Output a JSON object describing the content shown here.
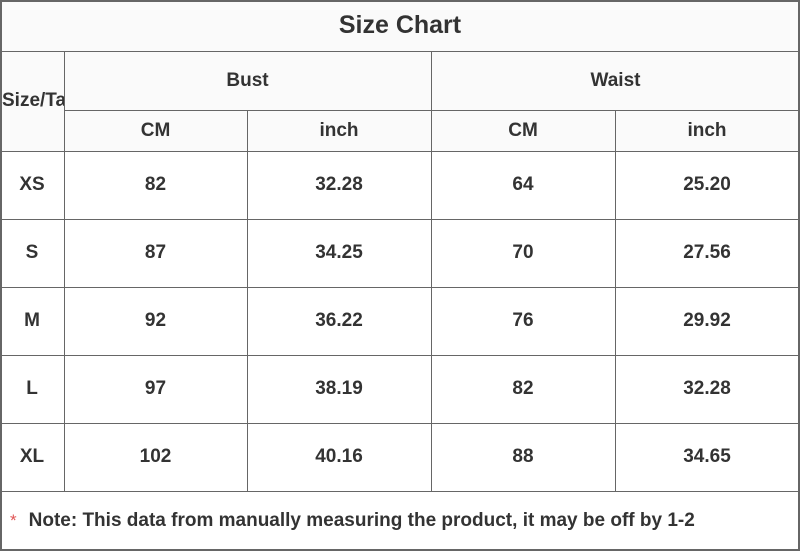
{
  "title": "Size Chart",
  "header": {
    "size_label": "Size/Ta",
    "groups": [
      "Bust",
      "Waist"
    ],
    "units": [
      "CM",
      "inch",
      "CM",
      "inch"
    ]
  },
  "rows": [
    {
      "size": "XS",
      "values": [
        "82",
        "32.28",
        "64",
        "25.20"
      ]
    },
    {
      "size": "S",
      "values": [
        "87",
        "34.25",
        "70",
        "27.56"
      ]
    },
    {
      "size": "M",
      "values": [
        "92",
        "36.22",
        "76",
        "29.92"
      ]
    },
    {
      "size": "L",
      "values": [
        "97",
        "38.19",
        "82",
        "32.28"
      ]
    },
    {
      "size": "XL",
      "values": [
        "102",
        "40.16",
        "88",
        "34.65"
      ]
    }
  ],
  "note": {
    "marker": "*",
    "text": "Note: This data from manually measuring the product, it may be off by 1-2"
  },
  "colors": {
    "text": "#333333",
    "header_bg": "#fafafa",
    "border": "#666666",
    "marker": "#e05555"
  }
}
